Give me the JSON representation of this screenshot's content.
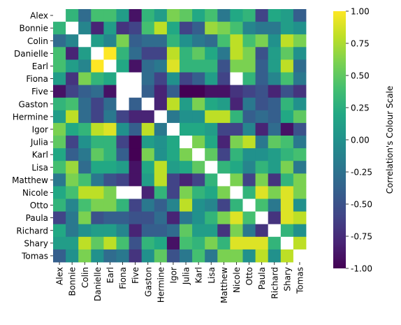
{
  "chart_data": {
    "type": "heatmap",
    "labels": [
      "Alex",
      "Bonnie",
      "Colin",
      "Danielle",
      "Earl",
      "Fiona",
      "Five",
      "Gaston",
      "Hermine",
      "Igor",
      "Julia",
      "Karl",
      "Lisa",
      "Matthew",
      "Nicole",
      "Otto",
      "Paula",
      "Richard",
      "Shary",
      "Tomas"
    ],
    "values": [
      [
        null,
        0.3,
        -0.3,
        0.4,
        0.4,
        0.1,
        -0.9,
        0.3,
        0.1,
        0.6,
        0.5,
        0.2,
        0.4,
        -0.2,
        0.2,
        0.3,
        -0.6,
        0.2,
        0.1,
        -0.4
      ],
      [
        0.3,
        null,
        -0.1,
        -0.8,
        0.1,
        -0.7,
        -0.6,
        0.4,
        0.8,
        0.2,
        -0.6,
        -0.4,
        0.7,
        0.6,
        0.4,
        -0.1,
        -0.2,
        -0.2,
        0.1,
        0.0
      ],
      [
        -0.3,
        -0.1,
        null,
        0.1,
        -0.1,
        0.6,
        -0.4,
        -0.3,
        -0.3,
        0.3,
        0.0,
        -0.2,
        -0.3,
        0.4,
        0.8,
        0.4,
        0.6,
        0.0,
        0.8,
        0.6
      ],
      [
        0.4,
        -0.8,
        0.1,
        null,
        1.0,
        0.3,
        -0.3,
        -0.6,
        -0.6,
        0.8,
        0.3,
        0.5,
        0.2,
        -0.2,
        0.8,
        0.6,
        -0.5,
        0.1,
        0.5,
        0.0
      ],
      [
        0.4,
        0.1,
        -0.1,
        1.0,
        null,
        0.2,
        -0.9,
        -0.3,
        -0.2,
        0.9,
        0.3,
        0.3,
        0.3,
        -0.5,
        0.6,
        0.6,
        -0.4,
        0.1,
        0.8,
        -0.3
      ],
      [
        0.1,
        -0.7,
        0.6,
        0.3,
        0.2,
        null,
        null,
        -0.3,
        -0.6,
        0.0,
        -0.6,
        -0.4,
        0.1,
        -0.6,
        null,
        0.3,
        -0.4,
        -0.1,
        0.4,
        -0.2
      ],
      [
        -0.9,
        -0.6,
        -0.4,
        -0.3,
        -0.9,
        null,
        null,
        -0.4,
        -0.8,
        -0.4,
        -1.0,
        -1.0,
        -0.9,
        -0.9,
        -0.7,
        -0.6,
        -0.5,
        -0.8,
        -0.5,
        -0.7
      ],
      [
        0.3,
        0.4,
        -0.3,
        -0.6,
        -0.3,
        null,
        -0.4,
        null,
        -0.8,
        0.8,
        0.1,
        0.6,
        0.2,
        0.1,
        -0.8,
        -0.2,
        -0.5,
        -0.4,
        0.3,
        0.0
      ],
      [
        0.1,
        0.8,
        -0.3,
        -0.6,
        -0.2,
        -0.6,
        -0.8,
        -0.8,
        null,
        -0.2,
        0.0,
        0.0,
        0.8,
        0.8,
        0.3,
        -0.4,
        -0.3,
        -0.4,
        0.2,
        0.5
      ],
      [
        0.6,
        0.2,
        0.3,
        0.8,
        0.9,
        0.0,
        -0.4,
        0.8,
        -0.2,
        null,
        0.2,
        0.2,
        0.1,
        -0.6,
        -0.6,
        -0.1,
        -0.8,
        -0.3,
        -0.9,
        -0.5
      ],
      [
        0.5,
        -0.6,
        0.0,
        0.3,
        0.3,
        -0.6,
        -1.0,
        0.1,
        0.0,
        0.2,
        null,
        0.6,
        0.2,
        -0.8,
        0.6,
        0.8,
        -0.2,
        0.5,
        0.4,
        -0.2
      ],
      [
        0.2,
        -0.4,
        -0.2,
        0.5,
        0.3,
        -0.4,
        -1.0,
        0.6,
        0.0,
        0.2,
        0.6,
        null,
        0.5,
        -0.6,
        0.3,
        0.0,
        0.0,
        0.1,
        0.3,
        0.4
      ],
      [
        0.4,
        0.7,
        -0.3,
        0.2,
        0.2,
        0.1,
        -0.9,
        0.2,
        0.8,
        0.1,
        0.2,
        0.5,
        null,
        0.3,
        0.2,
        -0.1,
        0.3,
        0.1,
        0.6,
        -0.2
      ],
      [
        -0.2,
        0.6,
        0.4,
        -0.2,
        -0.5,
        -0.6,
        -0.9,
        0.1,
        0.8,
        -0.6,
        -0.8,
        -0.6,
        0.3,
        null,
        0.6,
        -0.6,
        0.6,
        -0.7,
        0.3,
        0.6
      ],
      [
        0.2,
        0.4,
        0.8,
        0.8,
        0.6,
        null,
        null,
        -0.8,
        0.3,
        -0.6,
        0.6,
        0.3,
        0.2,
        0.6,
        null,
        0.3,
        0.9,
        0.6,
        0.9,
        0.6
      ],
      [
        0.3,
        -0.1,
        0.4,
        0.6,
        0.6,
        0.3,
        -0.6,
        -0.2,
        -0.4,
        -0.1,
        0.8,
        0.0,
        -0.1,
        -0.6,
        0.3,
        null,
        0.4,
        -0.2,
        0.9,
        0.0
      ],
      [
        -0.6,
        -0.2,
        0.6,
        -0.5,
        -0.4,
        -0.4,
        -0.5,
        -0.5,
        -0.3,
        -0.8,
        -0.2,
        0.0,
        0.3,
        0.6,
        0.9,
        0.4,
        null,
        -0.7,
        0.9,
        0.8
      ],
      [
        0.2,
        -0.2,
        0.0,
        0.1,
        0.1,
        -0.1,
        -0.8,
        -0.4,
        -0.4,
        -0.3,
        0.5,
        0.1,
        0.1,
        -0.7,
        0.6,
        -0.2,
        -0.7,
        null,
        0.3,
        0.0
      ],
      [
        0.1,
        0.1,
        0.8,
        0.5,
        0.8,
        0.4,
        -0.5,
        0.3,
        0.2,
        -0.9,
        0.4,
        0.3,
        0.6,
        0.3,
        0.9,
        0.9,
        0.9,
        0.3,
        null,
        0.8
      ],
      [
        -0.4,
        0.0,
        0.6,
        0.0,
        -0.3,
        -0.2,
        -0.7,
        0.0,
        0.5,
        -0.5,
        -0.2,
        0.4,
        -0.2,
        0.6,
        0.6,
        0.0,
        0.8,
        0.0,
        0.8,
        null
      ]
    ],
    "colorbar": {
      "label": "Correlation's Colour Scale",
      "range": [
        -1.0,
        1.0
      ],
      "ticks": [
        "-1.00",
        "-0.75",
        "-0.50",
        "-0.25",
        "0.00",
        "0.25",
        "0.50",
        "0.75",
        "1.00"
      ],
      "colormap": "viridis"
    },
    "missing_color": "#ffffff"
  }
}
